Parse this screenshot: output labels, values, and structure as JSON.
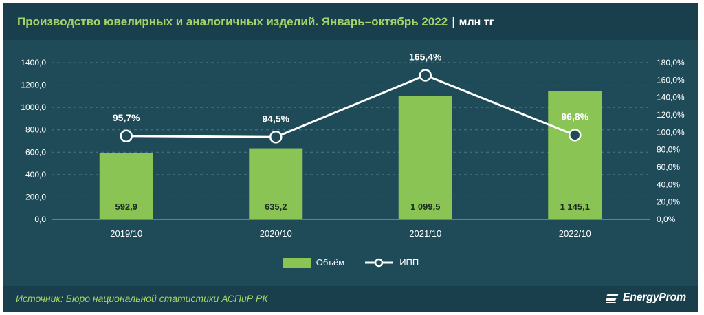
{
  "header": {
    "title": "Производство ювелирных и аналогичных изделий. Январь–октябрь 2022",
    "separator": "|",
    "unit": "млн тг"
  },
  "footer": {
    "source": "Источник: Бюро национальной статистики АСПиР РК",
    "logo_text": "EnergyProm"
  },
  "colors": {
    "background": "#1f4b59",
    "bar": "#8ac454",
    "line": "#ffffff",
    "accent_text": "#a5d46a"
  },
  "chart_data": {
    "type": "bar",
    "categories": [
      "2019/10",
      "2020/10",
      "2021/10",
      "2022/10"
    ],
    "series": [
      {
        "name": "Объём",
        "type": "bar",
        "axis": "left",
        "values": [
          592.9,
          635.2,
          1099.5,
          1145.1
        ],
        "labels": [
          "592,9",
          "635,2",
          "1 099,5",
          "1 145,1"
        ]
      },
      {
        "name": "ИПП",
        "type": "line",
        "axis": "right",
        "values": [
          95.7,
          94.5,
          165.4,
          96.8
        ],
        "labels": [
          "95,7%",
          "94,5%",
          "165,4%",
          "96,8%"
        ]
      }
    ],
    "y_left": {
      "ylim": [
        0,
        1400
      ],
      "ticks": [
        "0,0",
        "200,0",
        "400,0",
        "600,0",
        "800,0",
        "1000,0",
        "1200,0",
        "1400,0"
      ]
    },
    "y_right": {
      "ylim": [
        0,
        180
      ],
      "ticks": [
        "0,0%",
        "20,0%",
        "40,0%",
        "60,0%",
        "80,0%",
        "100,0%",
        "120,0%",
        "140,0%",
        "160,0%",
        "180,0%"
      ]
    },
    "grid": true,
    "legend": "bottom-center"
  }
}
